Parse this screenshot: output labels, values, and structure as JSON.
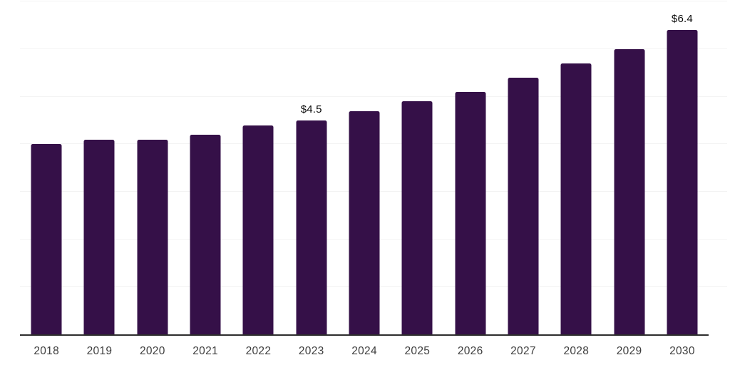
{
  "chart_data": {
    "type": "bar",
    "title": "",
    "xlabel": "",
    "ylabel": "",
    "categories": [
      "2018",
      "2019",
      "2020",
      "2021",
      "2022",
      "2023",
      "2024",
      "2025",
      "2026",
      "2027",
      "2028",
      "2029",
      "2030"
    ],
    "values": [
      4.0,
      4.1,
      4.1,
      4.2,
      4.4,
      4.5,
      4.7,
      4.9,
      5.1,
      5.4,
      5.7,
      6.0,
      6.4
    ],
    "bar_labels": [
      "",
      "",
      "",
      "",
      "",
      "$4.5",
      "",
      "",
      "",
      "",
      "",
      "",
      "$6.4"
    ],
    "ylim": [
      0,
      7
    ],
    "grid": "horizontal",
    "gridline_step": 1,
    "y_axis_ticks_visible": false,
    "legend": "none",
    "colors": {
      "bar": "#351048",
      "grid": "#f3f3f3",
      "axis": "#2d2d2d",
      "tick_label": "#3d3d3d",
      "bar_label": "#0a0a0a",
      "background": "#ffffff"
    }
  }
}
